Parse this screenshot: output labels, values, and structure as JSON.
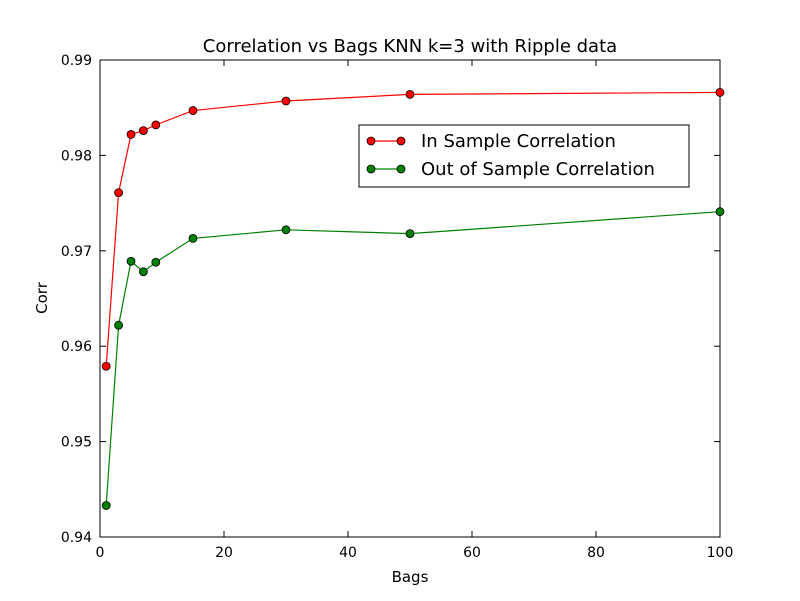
{
  "chart_data": {
    "type": "line",
    "title": "Correlation vs Bags KNN k=3 with Ripple data",
    "xlabel": "Bags",
    "ylabel": "Corr",
    "xlim": [
      0,
      100
    ],
    "ylim": [
      0.94,
      0.99
    ],
    "xticks": [
      0,
      20,
      40,
      60,
      80,
      100
    ],
    "yticks": [
      0.94,
      0.95,
      0.96,
      0.97,
      0.98,
      0.99
    ],
    "x": [
      1,
      3,
      5,
      7,
      9,
      15,
      30,
      50,
      100
    ],
    "grid": false,
    "legend_position": "upper-right",
    "series": [
      {
        "name": "In Sample Correlation",
        "color": "#ff0000",
        "marker": "circle",
        "values": [
          0.9579,
          0.9761,
          0.9822,
          0.9826,
          0.9832,
          0.9847,
          0.9857,
          0.9864,
          0.9866
        ]
      },
      {
        "name": "Out of Sample Correlation",
        "color": "#008000",
        "marker": "circle",
        "values": [
          0.9433,
          0.9622,
          0.9689,
          0.9678,
          0.9688,
          0.9713,
          0.9722,
          0.9718,
          0.9741
        ]
      }
    ]
  }
}
